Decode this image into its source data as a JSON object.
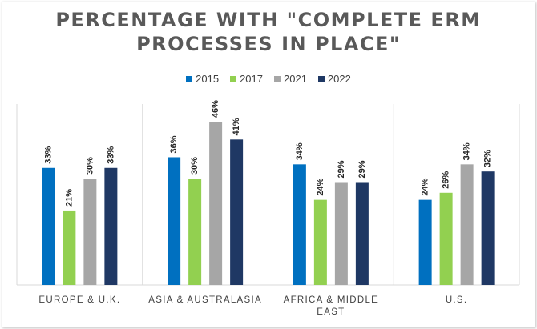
{
  "chart_data": {
    "type": "bar",
    "title_lines": [
      "PERCENTAGE WITH \"COMPLETE ERM",
      "PROCESSES IN PLACE\""
    ],
    "categories": [
      [
        "EUROPE & U.K."
      ],
      [
        "ASIA & AUSTRALASIA"
      ],
      [
        "AFRICA & MIDDLE",
        "EAST"
      ],
      [
        "U.S."
      ]
    ],
    "series": [
      {
        "name": "2015",
        "color": "#0070c0",
        "values": [
          33,
          36,
          34,
          24
        ],
        "labels": [
          "33%",
          "36%",
          "34%",
          "24%"
        ]
      },
      {
        "name": "2017",
        "color": "#92d050",
        "values": [
          21,
          30,
          24,
          26
        ],
        "labels": [
          "21%",
          "30%",
          "24%",
          "26%"
        ]
      },
      {
        "name": "2021",
        "color": "#a6a6a6",
        "values": [
          30,
          46,
          29,
          34
        ],
        "labels": [
          "30%",
          "46%",
          "29%",
          "34%"
        ]
      },
      {
        "name": "2022",
        "color": "#1f3864",
        "values": [
          33,
          41,
          29,
          32
        ],
        "labels": [
          "33%",
          "41%",
          "29%",
          "32%"
        ]
      }
    ],
    "ylim": [
      0,
      51
    ],
    "legend_position": "top",
    "grid": false,
    "category_dividers": true
  }
}
